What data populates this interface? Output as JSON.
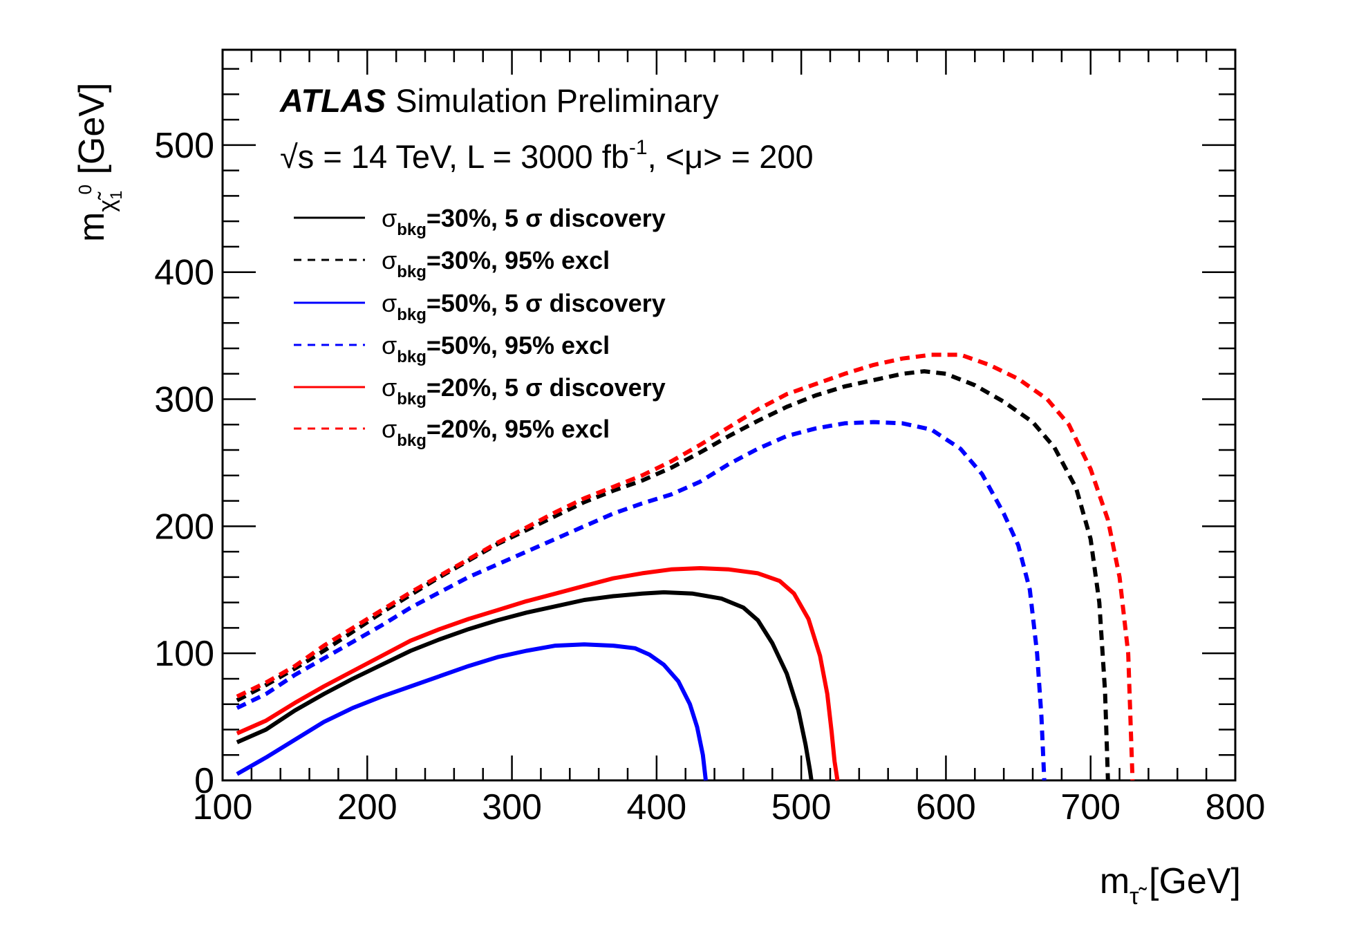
{
  "chart_data": {
    "type": "line",
    "title": "Simulation Preliminary",
    "experiment": "ATLAS",
    "subtitle": {
      "sqrt": "√s",
      "text": " = 14 TeV, L = 3000 fb",
      "sup": "-1",
      "rest": ", <μ> = 200"
    },
    "xlabel": {
      "main": "m",
      "sub": "τ̃",
      "unit": " [GeV]"
    },
    "ylabel": {
      "main": "m",
      "sub": "χ̃",
      "subsub": "1",
      "sup": "0",
      "unit": " [GeV]"
    },
    "xlim": [
      100,
      800
    ],
    "ylim": [
      0,
      575
    ],
    "xticks": [
      100,
      200,
      300,
      400,
      500,
      600,
      700,
      800
    ],
    "yticks": [
      0,
      100,
      200,
      300,
      400,
      500
    ],
    "grid": false,
    "legend_position": "top-left",
    "series": [
      {
        "name_sigma": "σ",
        "name_sub": "bkg",
        "name_text": "=30%, 5 σ discovery",
        "color": "#000000",
        "style": "solid",
        "x": [
          110,
          130,
          150,
          170,
          190,
          210,
          230,
          250,
          270,
          290,
          310,
          330,
          350,
          370,
          390,
          405,
          425,
          445,
          460,
          470,
          480,
          490,
          498,
          503,
          506,
          507
        ],
        "y": [
          30,
          40,
          55,
          68,
          80,
          91,
          102,
          111,
          119,
          126,
          132,
          137,
          142,
          145,
          147,
          148,
          147,
          143,
          136,
          126,
          108,
          84,
          55,
          28,
          8,
          0
        ]
      },
      {
        "name_sigma": "σ",
        "name_sub": "bkg",
        "name_text": "=30%, 95% excl",
        "color": "#000000",
        "style": "dashed",
        "x": [
          110,
          130,
          150,
          170,
          190,
          210,
          230,
          250,
          270,
          290,
          310,
          330,
          350,
          370,
          390,
          410,
          430,
          450,
          470,
          490,
          510,
          530,
          550,
          570,
          585,
          600,
          620,
          640,
          660,
          675,
          690,
          700,
          706,
          710,
          712
        ],
        "y": [
          63,
          75,
          88,
          102,
          117,
          132,
          146,
          160,
          173,
          186,
          197,
          208,
          219,
          228,
          236,
          246,
          258,
          271,
          283,
          294,
          303,
          310,
          315,
          320,
          322,
          320,
          311,
          298,
          282,
          262,
          230,
          190,
          140,
          70,
          0
        ]
      },
      {
        "name_sigma": "σ",
        "name_sub": "bkg",
        "name_text": "=50%, 5 σ discovery",
        "color": "#0000ff",
        "style": "solid",
        "x": [
          110,
          130,
          150,
          170,
          190,
          210,
          230,
          250,
          270,
          290,
          310,
          330,
          350,
          370,
          385,
          395,
          405,
          415,
          423,
          428,
          432,
          434
        ],
        "y": [
          5,
          18,
          32,
          46,
          57,
          66,
          74,
          82,
          90,
          97,
          102,
          106,
          107,
          106,
          104,
          99,
          91,
          78,
          60,
          42,
          20,
          0
        ]
      },
      {
        "name_sigma": "σ",
        "name_sub": "bkg",
        "name_text": "=50%, 95% excl",
        "color": "#0000ff",
        "style": "dashed",
        "x": [
          110,
          130,
          150,
          170,
          190,
          210,
          230,
          250,
          270,
          290,
          310,
          330,
          350,
          370,
          390,
          410,
          430,
          450,
          470,
          490,
          510,
          530,
          550,
          570,
          590,
          610,
          625,
          640,
          650,
          658,
          663,
          666,
          668
        ],
        "y": [
          57,
          68,
          83,
          96,
          109,
          122,
          136,
          148,
          160,
          170,
          180,
          190,
          200,
          210,
          218,
          225,
          235,
          249,
          261,
          271,
          277,
          281,
          282,
          281,
          276,
          261,
          241,
          210,
          185,
          150,
          100,
          50,
          0
        ]
      },
      {
        "name_sigma": "σ",
        "name_sub": "bkg",
        "name_text": "=20%, 5 σ discovery",
        "color": "#ff0000",
        "style": "solid",
        "x": [
          110,
          130,
          150,
          170,
          190,
          210,
          230,
          250,
          270,
          290,
          310,
          330,
          350,
          370,
          390,
          410,
          430,
          450,
          470,
          485,
          495,
          505,
          513,
          518,
          521,
          523,
          525
        ],
        "y": [
          37,
          47,
          61,
          74,
          86,
          98,
          110,
          119,
          127,
          134,
          141,
          147,
          153,
          159,
          163,
          166,
          167,
          166,
          163,
          157,
          147,
          127,
          98,
          68,
          38,
          15,
          0
        ]
      },
      {
        "name_sigma": "σ",
        "name_sub": "bkg",
        "name_text": "=20%, 95% excl",
        "color": "#ff0000",
        "style": "dashed",
        "x": [
          110,
          130,
          150,
          170,
          190,
          210,
          230,
          250,
          270,
          290,
          310,
          330,
          350,
          370,
          390,
          410,
          430,
          450,
          470,
          490,
          510,
          530,
          550,
          570,
          590,
          610,
          630,
          650,
          670,
          685,
          700,
          712,
          720,
          726,
          729
        ],
        "y": [
          66,
          77,
          90,
          106,
          120,
          134,
          148,
          161,
          174,
          187,
          199,
          211,
          222,
          231,
          240,
          251,
          264,
          278,
          292,
          304,
          312,
          320,
          327,
          332,
          335,
          335,
          327,
          316,
          300,
          280,
          245,
          205,
          160,
          100,
          0
        ]
      }
    ]
  }
}
